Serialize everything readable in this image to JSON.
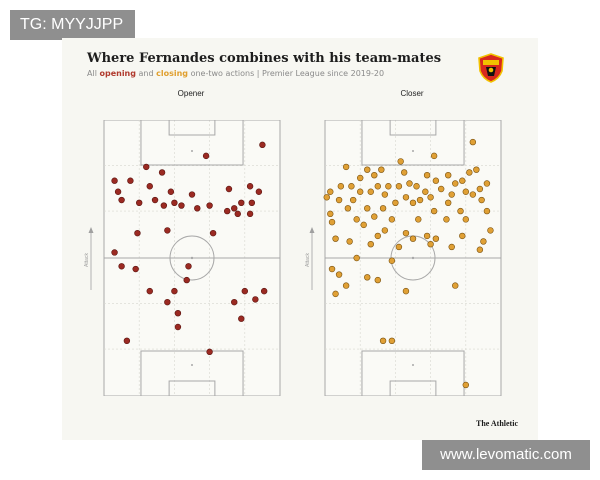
{
  "watermark_left": "TG: MYYJJPP",
  "watermark_right": "www.levomatic.com",
  "title": "Where Fernandes combines with his team-mates",
  "subtitle": {
    "prefix": "All ",
    "open_word": "opening",
    "and": " and ",
    "close_word": "closing",
    "suffix": " one-two actions | Premier League since 2019-20"
  },
  "brand": "The Athletic",
  "colors": {
    "opener": "#9b2a22",
    "closer": "#e0a035",
    "pitch_line": "#a8a8a8",
    "grid_line": "#d8d8d0"
  },
  "crest_icon": "manchester-united-crest-icon",
  "chart_data": [
    {
      "type": "scatter",
      "title": "Opener",
      "ylabel": "Attack",
      "xlim": [
        0,
        100
      ],
      "ylim": [
        0,
        100
      ],
      "grid": true,
      "points": [
        [
          90,
          91
        ],
        [
          58,
          87
        ],
        [
          6,
          78
        ],
        [
          15,
          78
        ],
        [
          24,
          83
        ],
        [
          33,
          81
        ],
        [
          8,
          74
        ],
        [
          26,
          76
        ],
        [
          38,
          74
        ],
        [
          50,
          73
        ],
        [
          71,
          75
        ],
        [
          83,
          76
        ],
        [
          88,
          74
        ],
        [
          78,
          70
        ],
        [
          84,
          70
        ],
        [
          29,
          71
        ],
        [
          10,
          71
        ],
        [
          40,
          70
        ],
        [
          20,
          70
        ],
        [
          34,
          69
        ],
        [
          44,
          69
        ],
        [
          53,
          68
        ],
        [
          60,
          69
        ],
        [
          74,
          68
        ],
        [
          70,
          67
        ],
        [
          76,
          66
        ],
        [
          83,
          66
        ],
        [
          62,
          59
        ],
        [
          36,
          60
        ],
        [
          19,
          59
        ],
        [
          6,
          52
        ],
        [
          10,
          47
        ],
        [
          18,
          46
        ],
        [
          48,
          47
        ],
        [
          47,
          42
        ],
        [
          40,
          38
        ],
        [
          26,
          38
        ],
        [
          80,
          38
        ],
        [
          91,
          38
        ],
        [
          86,
          35
        ],
        [
          36,
          34
        ],
        [
          74,
          34
        ],
        [
          42,
          30
        ],
        [
          78,
          28
        ],
        [
          42,
          25
        ],
        [
          13,
          20
        ],
        [
          60,
          16
        ]
      ]
    },
    {
      "type": "scatter",
      "title": "Closer",
      "ylabel": "Attack",
      "xlim": [
        0,
        100
      ],
      "ylim": [
        0,
        100
      ],
      "grid": true,
      "points": [
        [
          84,
          92
        ],
        [
          43,
          85
        ],
        [
          62,
          87
        ],
        [
          12,
          83
        ],
        [
          32,
          82
        ],
        [
          24,
          82
        ],
        [
          45,
          81
        ],
        [
          58,
          80
        ],
        [
          70,
          80
        ],
        [
          82,
          81
        ],
        [
          86,
          82
        ],
        [
          28,
          80
        ],
        [
          20,
          79
        ],
        [
          48,
          77
        ],
        [
          63,
          78
        ],
        [
          74,
          77
        ],
        [
          78,
          78
        ],
        [
          92,
          77
        ],
        [
          9,
          76
        ],
        [
          15,
          76
        ],
        [
          30,
          76
        ],
        [
          36,
          76
        ],
        [
          42,
          76
        ],
        [
          52,
          76
        ],
        [
          57,
          74
        ],
        [
          66,
          75
        ],
        [
          72,
          73
        ],
        [
          80,
          74
        ],
        [
          88,
          75
        ],
        [
          3,
          74
        ],
        [
          20,
          74
        ],
        [
          26,
          74
        ],
        [
          34,
          73
        ],
        [
          46,
          72
        ],
        [
          60,
          72
        ],
        [
          84,
          73
        ],
        [
          1,
          72
        ],
        [
          8,
          71
        ],
        [
          16,
          71
        ],
        [
          40,
          70
        ],
        [
          50,
          70
        ],
        [
          54,
          71
        ],
        [
          70,
          70
        ],
        [
          89,
          71
        ],
        [
          13,
          68
        ],
        [
          24,
          68
        ],
        [
          33,
          68
        ],
        [
          62,
          67
        ],
        [
          77,
          67
        ],
        [
          92,
          67
        ],
        [
          3,
          66
        ],
        [
          18,
          64
        ],
        [
          28,
          65
        ],
        [
          38,
          64
        ],
        [
          53,
          64
        ],
        [
          69,
          64
        ],
        [
          80,
          64
        ],
        [
          94,
          60
        ],
        [
          4,
          63
        ],
        [
          22,
          62
        ],
        [
          34,
          60
        ],
        [
          46,
          59
        ],
        [
          58,
          58
        ],
        [
          78,
          58
        ],
        [
          90,
          56
        ],
        [
          6,
          57
        ],
        [
          14,
          56
        ],
        [
          30,
          58
        ],
        [
          50,
          57
        ],
        [
          63,
          57
        ],
        [
          88,
          53
        ],
        [
          26,
          55
        ],
        [
          42,
          54
        ],
        [
          60,
          55
        ],
        [
          72,
          54
        ],
        [
          38,
          49
        ],
        [
          18,
          50
        ],
        [
          4,
          46
        ],
        [
          8,
          44
        ],
        [
          24,
          43
        ],
        [
          30,
          42
        ],
        [
          12,
          40
        ],
        [
          46,
          38
        ],
        [
          6,
          37
        ],
        [
          74,
          40
        ],
        [
          33,
          20
        ],
        [
          38,
          20
        ],
        [
          80,
          4
        ]
      ]
    }
  ]
}
